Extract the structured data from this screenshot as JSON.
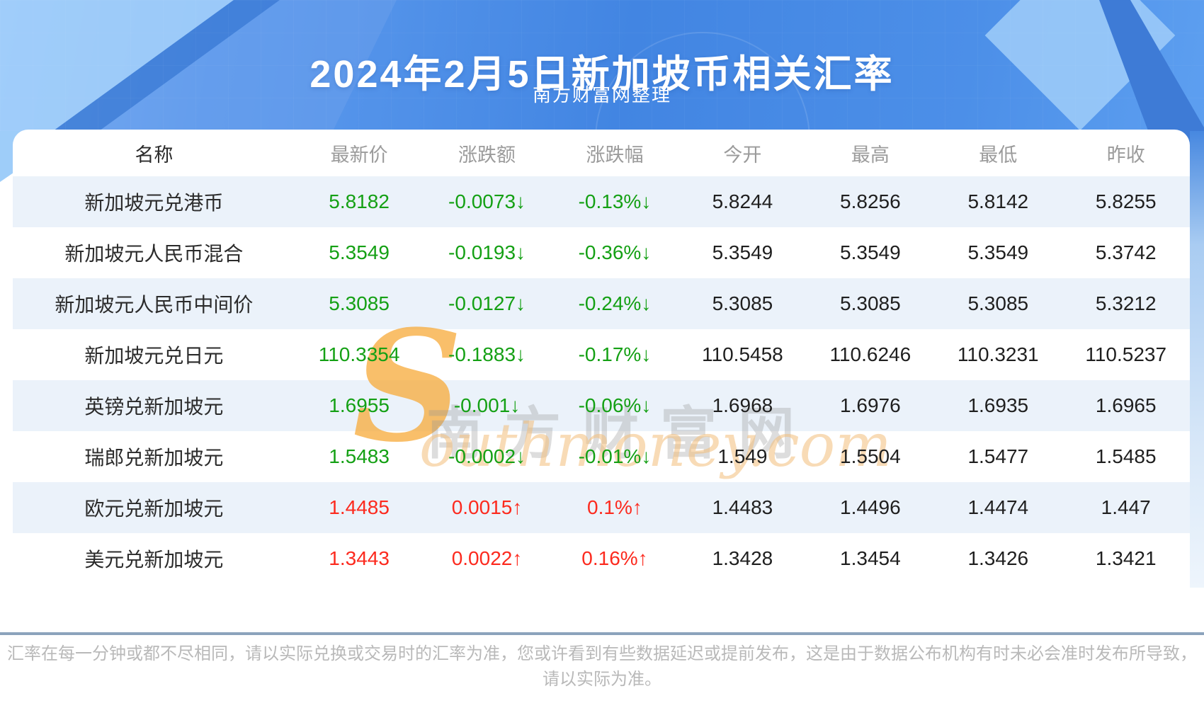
{
  "page": {
    "title": "2024年2月5日新加坡币相关汇率",
    "subtitle": "南方财富网整理"
  },
  "watermark": {
    "s": "S",
    "cn": "南方财富网",
    "en": "outhmoney.com"
  },
  "table": {
    "columns": [
      "名称",
      "最新价",
      "涨跌额",
      "涨跌幅",
      "今开",
      "最高",
      "最低",
      "昨收"
    ],
    "rows": [
      {
        "name": "新加坡元兑港币",
        "latest": "5.8182",
        "change": "-0.0073↓",
        "pct": "-0.13%↓",
        "open": "5.8244",
        "high": "5.8256",
        "low": "5.8142",
        "prev": "5.8255",
        "trend": "down"
      },
      {
        "name": "新加坡元人民币混合",
        "latest": "5.3549",
        "change": "-0.0193↓",
        "pct": "-0.36%↓",
        "open": "5.3549",
        "high": "5.3549",
        "low": "5.3549",
        "prev": "5.3742",
        "trend": "down"
      },
      {
        "name": "新加坡元人民币中间价",
        "latest": "5.3085",
        "change": "-0.0127↓",
        "pct": "-0.24%↓",
        "open": "5.3085",
        "high": "5.3085",
        "low": "5.3085",
        "prev": "5.3212",
        "trend": "down"
      },
      {
        "name": "新加坡元兑日元",
        "latest": "110.3354",
        "change": "-0.1883↓",
        "pct": "-0.17%↓",
        "open": "110.5458",
        "high": "110.6246",
        "low": "110.3231",
        "prev": "110.5237",
        "trend": "down"
      },
      {
        "name": "英镑兑新加坡元",
        "latest": "1.6955",
        "change": "-0.001↓",
        "pct": "-0.06%↓",
        "open": "1.6968",
        "high": "1.6976",
        "low": "1.6935",
        "prev": "1.6965",
        "trend": "down"
      },
      {
        "name": "瑞郎兑新加坡元",
        "latest": "1.5483",
        "change": "-0.0002↓",
        "pct": "-0.01%↓",
        "open": "1.549",
        "high": "1.5504",
        "low": "1.5477",
        "prev": "1.5485",
        "trend": "down"
      },
      {
        "name": "欧元兑新加坡元",
        "latest": "1.4485",
        "change": "0.0015↑",
        "pct": "0.1%↑",
        "open": "1.4483",
        "high": "1.4496",
        "low": "1.4474",
        "prev": "1.447",
        "trend": "up"
      },
      {
        "name": "美元兑新加坡元",
        "latest": "1.3443",
        "change": "0.0022↑",
        "pct": "0.16%↑",
        "open": "1.3428",
        "high": "1.3454",
        "low": "1.3426",
        "prev": "1.3421",
        "trend": "up"
      }
    ]
  },
  "footer": {
    "line1": "汇率在每一分钟或都不尽相同，请以实际兑换或交易时的汇率为准，您或许看到有些数据延迟或提前发布，这是由于数据公布机构有时未必会准时发布所导致，",
    "line2": "请以实际为准。"
  },
  "colors": {
    "up_red": "#fc2a1e",
    "down_green": "#14a014",
    "banner_blue": "#4285e2",
    "row_alt_blue": "#ebf2fa",
    "divider_blue_gray": "#8ca3bc",
    "watermark_orange": "#f6a630"
  }
}
